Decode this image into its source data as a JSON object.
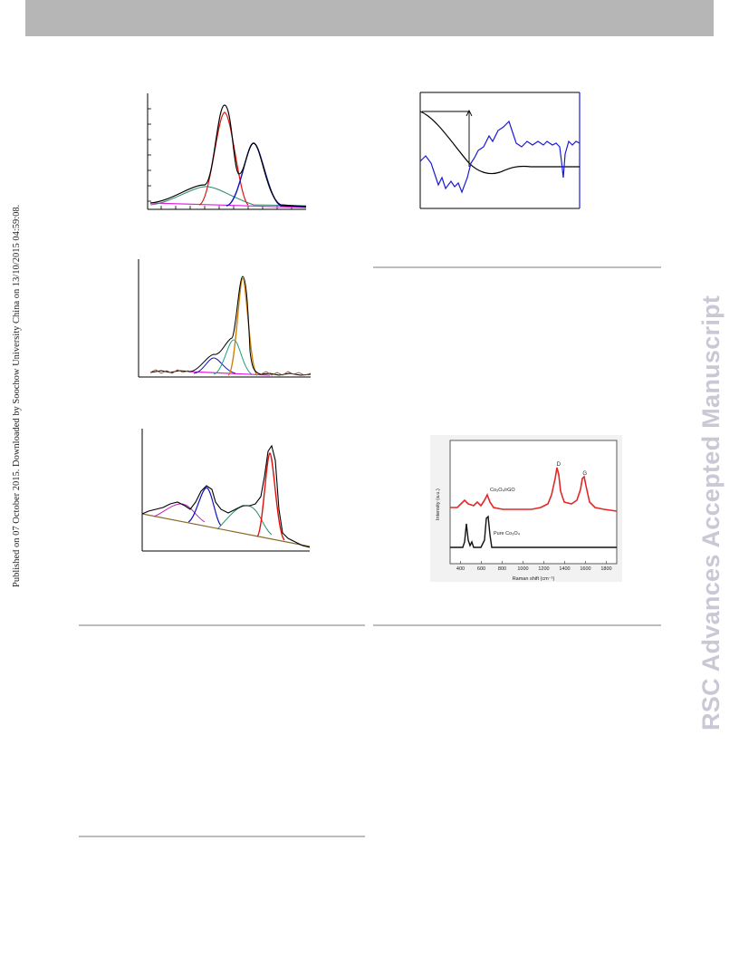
{
  "page": {
    "side_note_left": "Published on 07 October 2015. Downloaded by Soochow University China on 13/10/2015 04:59:08.",
    "side_note_right": "RSC Advances Accepted Manuscript"
  },
  "colors": {
    "header_bar": "#b6b6b6",
    "watermark": "#c9c9d6",
    "red_series": "#e02828",
    "black_series": "#111111",
    "blue_curve": "#1a1ad6"
  },
  "chart_data": [
    {
      "type": "line",
      "panel": "xps-top-left",
      "series": [
        {
          "color": "#000000",
          "kind": "envelope"
        },
        {
          "color": "#e01010",
          "kind": "component"
        },
        {
          "color": "#1010c0",
          "kind": "component"
        },
        {
          "color": "#2a8a6a",
          "kind": "component"
        },
        {
          "color": "#e020e0",
          "kind": "background"
        }
      ]
    },
    {
      "type": "line",
      "panel": "xps-middle-left",
      "series": [
        {
          "color": "#000000",
          "kind": "envelope"
        },
        {
          "color": "#d08000",
          "kind": "component"
        },
        {
          "color": "#1aa080",
          "kind": "component"
        },
        {
          "color": "#1010c0",
          "kind": "component"
        },
        {
          "color": "#e020e0",
          "kind": "background"
        }
      ]
    },
    {
      "type": "line",
      "panel": "xps-bottom-left",
      "series": [
        {
          "color": "#000000",
          "kind": "envelope"
        },
        {
          "color": "#e01010",
          "kind": "component"
        },
        {
          "color": "#1010c0",
          "kind": "component"
        },
        {
          "color": "#2a8a6a",
          "kind": "component"
        },
        {
          "color": "#c020c0",
          "kind": "component"
        },
        {
          "color": "#8b6a2a",
          "kind": "background"
        }
      ]
    },
    {
      "type": "line",
      "panel": "thermal-top-right",
      "series": [
        {
          "color": "#000000",
          "kind": "black"
        },
        {
          "color": "#1a1ad6",
          "kind": "blue"
        }
      ]
    },
    {
      "type": "line",
      "panel": "raman",
      "xlabel": "Raman shift (cm⁻¹)",
      "ylabel": "Intensity (a.u.)",
      "xlim": [
        300,
        1900
      ],
      "x_ticks": [
        "400",
        "600",
        "800",
        "1000",
        "1200",
        "1400",
        "1600",
        "1800"
      ],
      "series": [
        {
          "name": "Co₃O₄/rGO",
          "color": "#e02828"
        },
        {
          "name": "Pure Co₃O₄",
          "color": "#111111"
        }
      ],
      "peak_labels": [
        {
          "text": "D",
          "x": 1340
        },
        {
          "text": "G",
          "x": 1590
        }
      ]
    }
  ]
}
